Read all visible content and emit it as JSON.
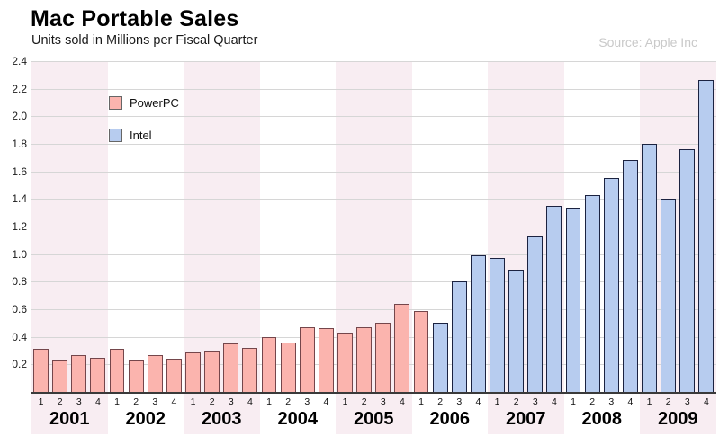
{
  "colors": {
    "powerpc_fill": "#FBB4AE",
    "powerpc_border": "#74464B",
    "intel_fill": "#B7CCEF",
    "intel_border": "#1B2240",
    "band_odd_year": "#F8EDF2",
    "band_even_year": "#FFFFFF",
    "gridline": "#D6D6D6",
    "axis_line": "#3A3A3A",
    "source_text": "#C9C9C9"
  },
  "chart_data": {
    "type": "bar",
    "title": "Mac Portable Sales",
    "subtitle": "Units sold in Millions per Fiscal Quarter",
    "source": "Source: Apple Inc",
    "xlabel": "",
    "ylabel": "",
    "ylim": [
      0,
      2.4
    ],
    "yticks": [
      "0.2",
      "0.4",
      "0.6",
      "0.8",
      "1.0",
      "1.2",
      "1.4",
      "1.6",
      "1.8",
      "2.0",
      "2.2",
      "2.4"
    ],
    "grid": true,
    "legend_position": "inside-top-left",
    "legend": [
      {
        "name": "PowerPC",
        "series": "powerpc"
      },
      {
        "name": "Intel",
        "series": "intel"
      }
    ],
    "years": [
      "2001",
      "2002",
      "2003",
      "2004",
      "2005",
      "2006",
      "2007",
      "2008",
      "2009"
    ],
    "quarter_ticks": [
      "1",
      "2",
      "3",
      "4"
    ],
    "points": [
      {
        "year": "2001",
        "quarter": "1",
        "series": "powerpc",
        "value": 0.31
      },
      {
        "year": "2001",
        "quarter": "2",
        "series": "powerpc",
        "value": 0.23
      },
      {
        "year": "2001",
        "quarter": "3",
        "series": "powerpc",
        "value": 0.27
      },
      {
        "year": "2001",
        "quarter": "4",
        "series": "powerpc",
        "value": 0.25
      },
      {
        "year": "2002",
        "quarter": "1",
        "series": "powerpc",
        "value": 0.31
      },
      {
        "year": "2002",
        "quarter": "2",
        "series": "powerpc",
        "value": 0.23
      },
      {
        "year": "2002",
        "quarter": "3",
        "series": "powerpc",
        "value": 0.27
      },
      {
        "year": "2002",
        "quarter": "4",
        "series": "powerpc",
        "value": 0.24
      },
      {
        "year": "2003",
        "quarter": "1",
        "series": "powerpc",
        "value": 0.29
      },
      {
        "year": "2003",
        "quarter": "2",
        "series": "powerpc",
        "value": 0.3
      },
      {
        "year": "2003",
        "quarter": "3",
        "series": "powerpc",
        "value": 0.35
      },
      {
        "year": "2003",
        "quarter": "4",
        "series": "powerpc",
        "value": 0.32
      },
      {
        "year": "2004",
        "quarter": "1",
        "series": "powerpc",
        "value": 0.4
      },
      {
        "year": "2004",
        "quarter": "2",
        "series": "powerpc",
        "value": 0.36
      },
      {
        "year": "2004",
        "quarter": "3",
        "series": "powerpc",
        "value": 0.47
      },
      {
        "year": "2004",
        "quarter": "4",
        "series": "powerpc",
        "value": 0.46
      },
      {
        "year": "2005",
        "quarter": "1",
        "series": "powerpc",
        "value": 0.43
      },
      {
        "year": "2005",
        "quarter": "2",
        "series": "powerpc",
        "value": 0.47
      },
      {
        "year": "2005",
        "quarter": "3",
        "series": "powerpc",
        "value": 0.5
      },
      {
        "year": "2005",
        "quarter": "4",
        "series": "powerpc",
        "value": 0.64
      },
      {
        "year": "2006",
        "quarter": "1",
        "series": "powerpc",
        "value": 0.59
      },
      {
        "year": "2006",
        "quarter": "2",
        "series": "intel",
        "value": 0.5
      },
      {
        "year": "2006",
        "quarter": "3",
        "series": "intel",
        "value": 0.8
      },
      {
        "year": "2006",
        "quarter": "4",
        "series": "intel",
        "value": 0.99
      },
      {
        "year": "2007",
        "quarter": "1",
        "series": "intel",
        "value": 0.97
      },
      {
        "year": "2007",
        "quarter": "2",
        "series": "intel",
        "value": 0.89
      },
      {
        "year": "2007",
        "quarter": "3",
        "series": "intel",
        "value": 1.13
      },
      {
        "year": "2007",
        "quarter": "4",
        "series": "intel",
        "value": 1.35
      },
      {
        "year": "2008",
        "quarter": "1",
        "series": "intel",
        "value": 1.34
      },
      {
        "year": "2008",
        "quarter": "2",
        "series": "intel",
        "value": 1.43
      },
      {
        "year": "2008",
        "quarter": "3",
        "series": "intel",
        "value": 1.55
      },
      {
        "year": "2008",
        "quarter": "4",
        "series": "intel",
        "value": 1.68
      },
      {
        "year": "2009",
        "quarter": "1",
        "series": "intel",
        "value": 1.8
      },
      {
        "year": "2009",
        "quarter": "2",
        "series": "intel",
        "value": 1.4
      },
      {
        "year": "2009",
        "quarter": "3",
        "series": "intel",
        "value": 1.76
      },
      {
        "year": "2009",
        "quarter": "4",
        "series": "intel",
        "value": 2.26
      }
    ]
  }
}
